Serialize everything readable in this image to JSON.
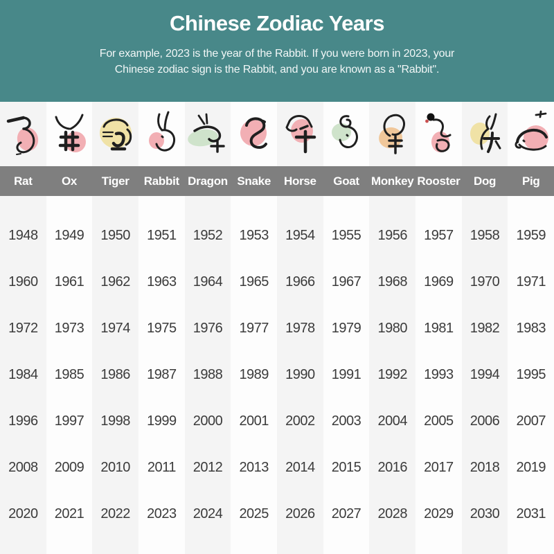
{
  "header": {
    "title": "Chinese Zodiac Years",
    "subtitle_line1": "For example, 2023 is the year of the Rabbit. If you were born in 2023, your",
    "subtitle_line2": "Chinese zodiac sign is the Rabbit, and you are known as a \"Rabbit\".",
    "background_color": "#488889",
    "text_color": "#ffffff"
  },
  "zodiac": {
    "name_bar_color": "#7f7f7f",
    "column_alt_color": "#f4f4f4",
    "column_base_color": "#fdfdfd",
    "year_text_color": "#3b3b3b",
    "ink_color": "#1f1f1f",
    "animals": [
      {
        "icon": "rat-icon",
        "blob_color": "#f2afb4"
      },
      {
        "icon": "ox-icon",
        "blob_color": "#f2afb4"
      },
      {
        "icon": "tiger-icon",
        "blob_color": "#f0e2a6"
      },
      {
        "icon": "rabbit-icon",
        "blob_color": "#f2afb4"
      },
      {
        "icon": "dragon-icon",
        "blob_color": "#cfe3cb"
      },
      {
        "icon": "snake-icon",
        "blob_color": "#f2afb4"
      },
      {
        "icon": "horse-icon",
        "blob_color": "#f2afb4"
      },
      {
        "icon": "goat-icon",
        "blob_color": "#cfe3cb"
      },
      {
        "icon": "monkey-icon",
        "blob_color": "#f0c79a"
      },
      {
        "icon": "rooster-icon",
        "blob_color": "#f2afb4"
      },
      {
        "icon": "dog-icon",
        "blob_color": "#f0e2a6"
      },
      {
        "icon": "pig-icon",
        "blob_color": "#f2afb4"
      }
    ]
  },
  "chart_data": {
    "type": "table",
    "title": "Chinese Zodiac Years",
    "columns": [
      "Rat",
      "Ox",
      "Tiger",
      "Rabbit",
      "Dragon",
      "Snake",
      "Horse",
      "Goat",
      "Monkey",
      "Rooster",
      "Dog",
      "Pig"
    ],
    "rows": [
      [
        1948,
        1949,
        1950,
        1951,
        1952,
        1953,
        1954,
        1955,
        1956,
        1957,
        1958,
        1959
      ],
      [
        1960,
        1961,
        1962,
        1963,
        1964,
        1965,
        1966,
        1967,
        1968,
        1969,
        1970,
        1971
      ],
      [
        1972,
        1973,
        1974,
        1975,
        1976,
        1977,
        1978,
        1979,
        1980,
        1981,
        1982,
        1983
      ],
      [
        1984,
        1985,
        1986,
        1987,
        1988,
        1989,
        1990,
        1991,
        1992,
        1993,
        1994,
        1995
      ],
      [
        1996,
        1997,
        1998,
        1999,
        2000,
        2001,
        2002,
        2003,
        2004,
        2005,
        2006,
        2007
      ],
      [
        2008,
        2009,
        2010,
        2011,
        2012,
        2013,
        2014,
        2015,
        2016,
        2017,
        2018,
        2019
      ],
      [
        2020,
        2021,
        2022,
        2023,
        2024,
        2025,
        2026,
        2027,
        2028,
        2029,
        2030,
        2031
      ]
    ]
  }
}
